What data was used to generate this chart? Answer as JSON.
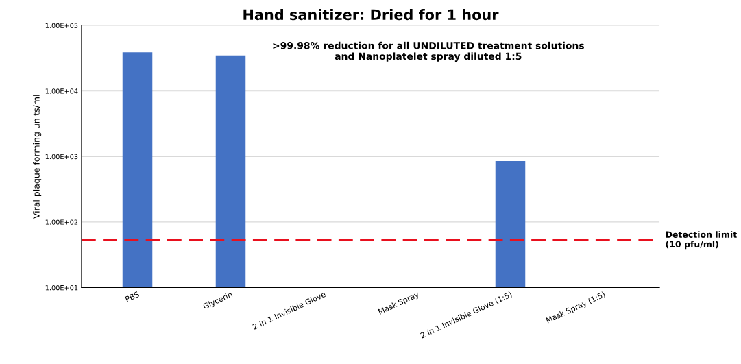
{
  "chart_data": {
    "type": "bar",
    "title": "Hand sanitizer: Dried for 1 hour",
    "ylabel": "Viral plaque forming units/ml",
    "categories": [
      "PBS",
      "Glycerin",
      "2 in 1 Invisible Glove",
      "Mask Spray",
      "2 in 1 Invisible Glove (1:5)",
      "Mask Spray (1:5)"
    ],
    "values": [
      39000,
      35000,
      null,
      null,
      850,
      null
    ],
    "color": "#4472c4",
    "log": true,
    "ylim": [
      10,
      100000
    ],
    "yticks": [
      {
        "value": 10,
        "label": "1.00E+01"
      },
      {
        "value": 100,
        "label": "1.00E+02"
      },
      {
        "value": 1000,
        "label": "1.00E+03"
      },
      {
        "value": 10000,
        "label": "1.00E+04"
      },
      {
        "value": 100000,
        "label": "1.00E+05"
      }
    ],
    "grid": "y",
    "ref_lines": [
      {
        "axis": "y",
        "value": 53,
        "label": "Detection limit\n(10 pfu/ml)",
        "color": "#e8101e",
        "line_style": "dashed"
      }
    ],
    "annotations": [
      ">99.98% reduction for all UNDILUTED treatment solutions\nand Nanoplatelet spray diluted 1:5"
    ]
  }
}
